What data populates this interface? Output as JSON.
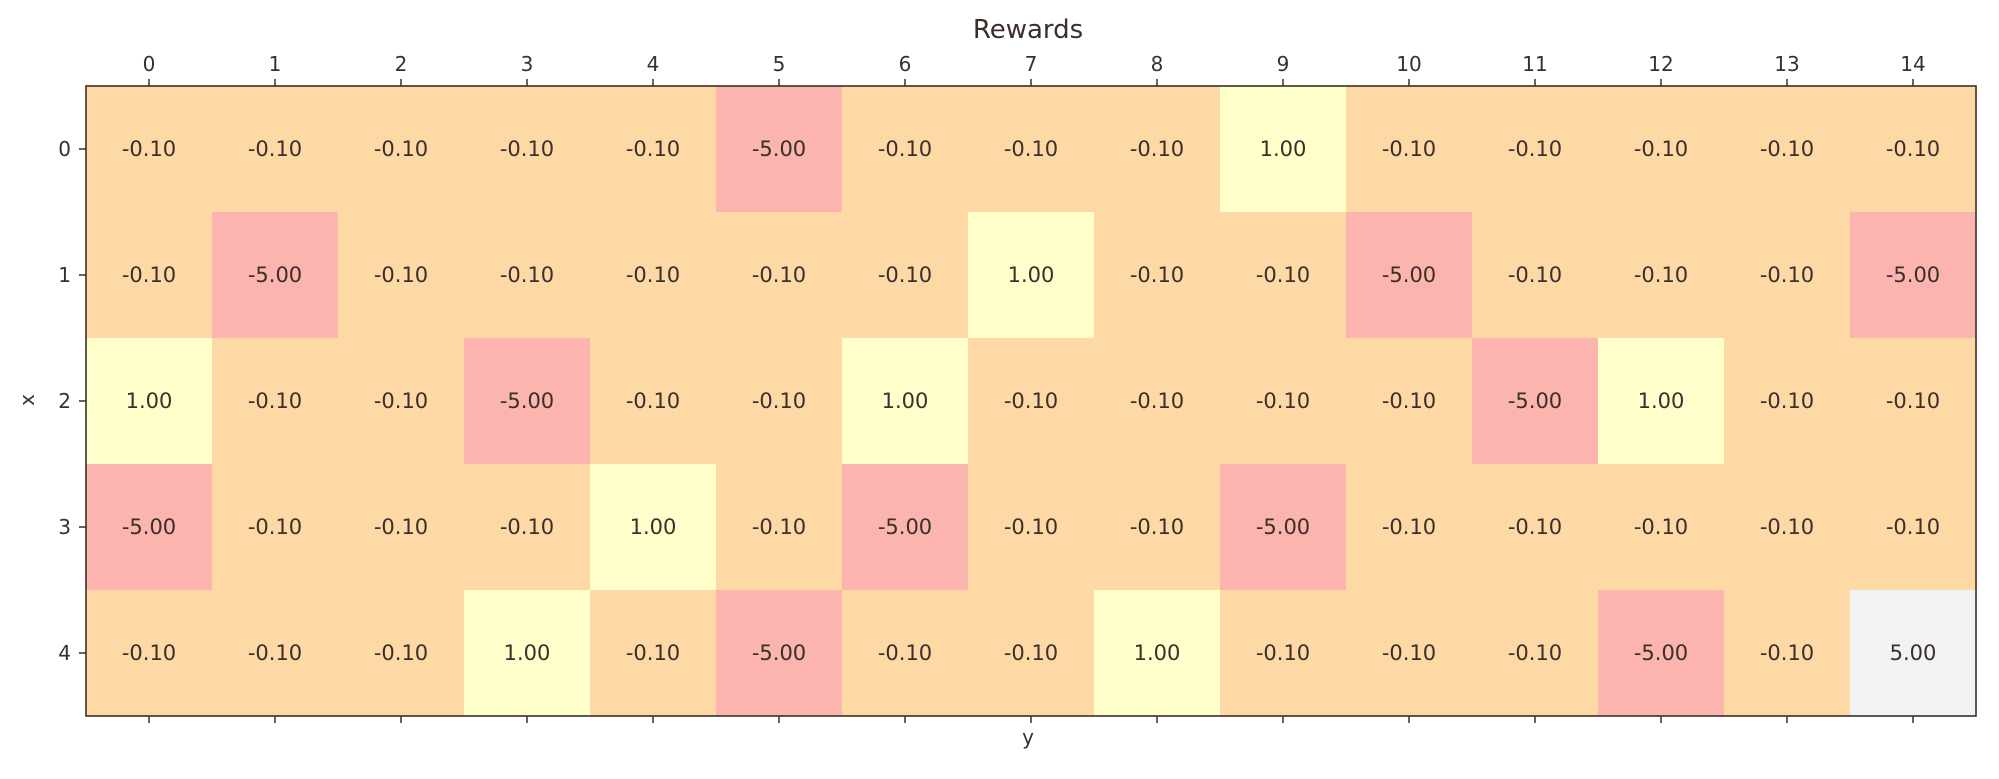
{
  "chart_data": {
    "type": "heatmap",
    "title": "Rewards",
    "xlabel": "y",
    "ylabel": "x",
    "x_ticks": [
      "0",
      "1",
      "2",
      "3",
      "4",
      "5",
      "6",
      "7",
      "8",
      "9",
      "10",
      "11",
      "12",
      "13",
      "14"
    ],
    "y_ticks": [
      "0",
      "1",
      "2",
      "3",
      "4"
    ],
    "grid": false,
    "colormap": "Pastel1 (value-mapped)",
    "colors": {
      "-0.1": "#fed9a6",
      "-5.0": "#fbb4ae",
      "1.0": "#ffffcc",
      "5.0": "#f2f2f2"
    },
    "values": [
      [
        -0.1,
        -0.1,
        -0.1,
        -0.1,
        -0.1,
        -5.0,
        -0.1,
        -0.1,
        -0.1,
        1.0,
        -0.1,
        -0.1,
        -0.1,
        -0.1,
        -0.1
      ],
      [
        -0.1,
        -5.0,
        -0.1,
        -0.1,
        -0.1,
        -0.1,
        -0.1,
        1.0,
        -0.1,
        -0.1,
        -5.0,
        -0.1,
        -0.1,
        -0.1,
        -5.0
      ],
      [
        1.0,
        -0.1,
        -0.1,
        -5.0,
        -0.1,
        -0.1,
        1.0,
        -0.1,
        -0.1,
        -0.1,
        -0.1,
        -5.0,
        1.0,
        -0.1,
        -0.1
      ],
      [
        -5.0,
        -0.1,
        -0.1,
        -0.1,
        1.0,
        -0.1,
        -5.0,
        -0.1,
        -0.1,
        -5.0,
        -0.1,
        -0.1,
        -0.1,
        -0.1,
        -0.1
      ],
      [
        -0.1,
        -0.1,
        -0.1,
        1.0,
        -0.1,
        -5.0,
        -0.1,
        -0.1,
        1.0,
        -0.1,
        -0.1,
        -0.1,
        -5.0,
        -0.1,
        5.0
      ]
    ],
    "value_format": "2 decimals"
  }
}
